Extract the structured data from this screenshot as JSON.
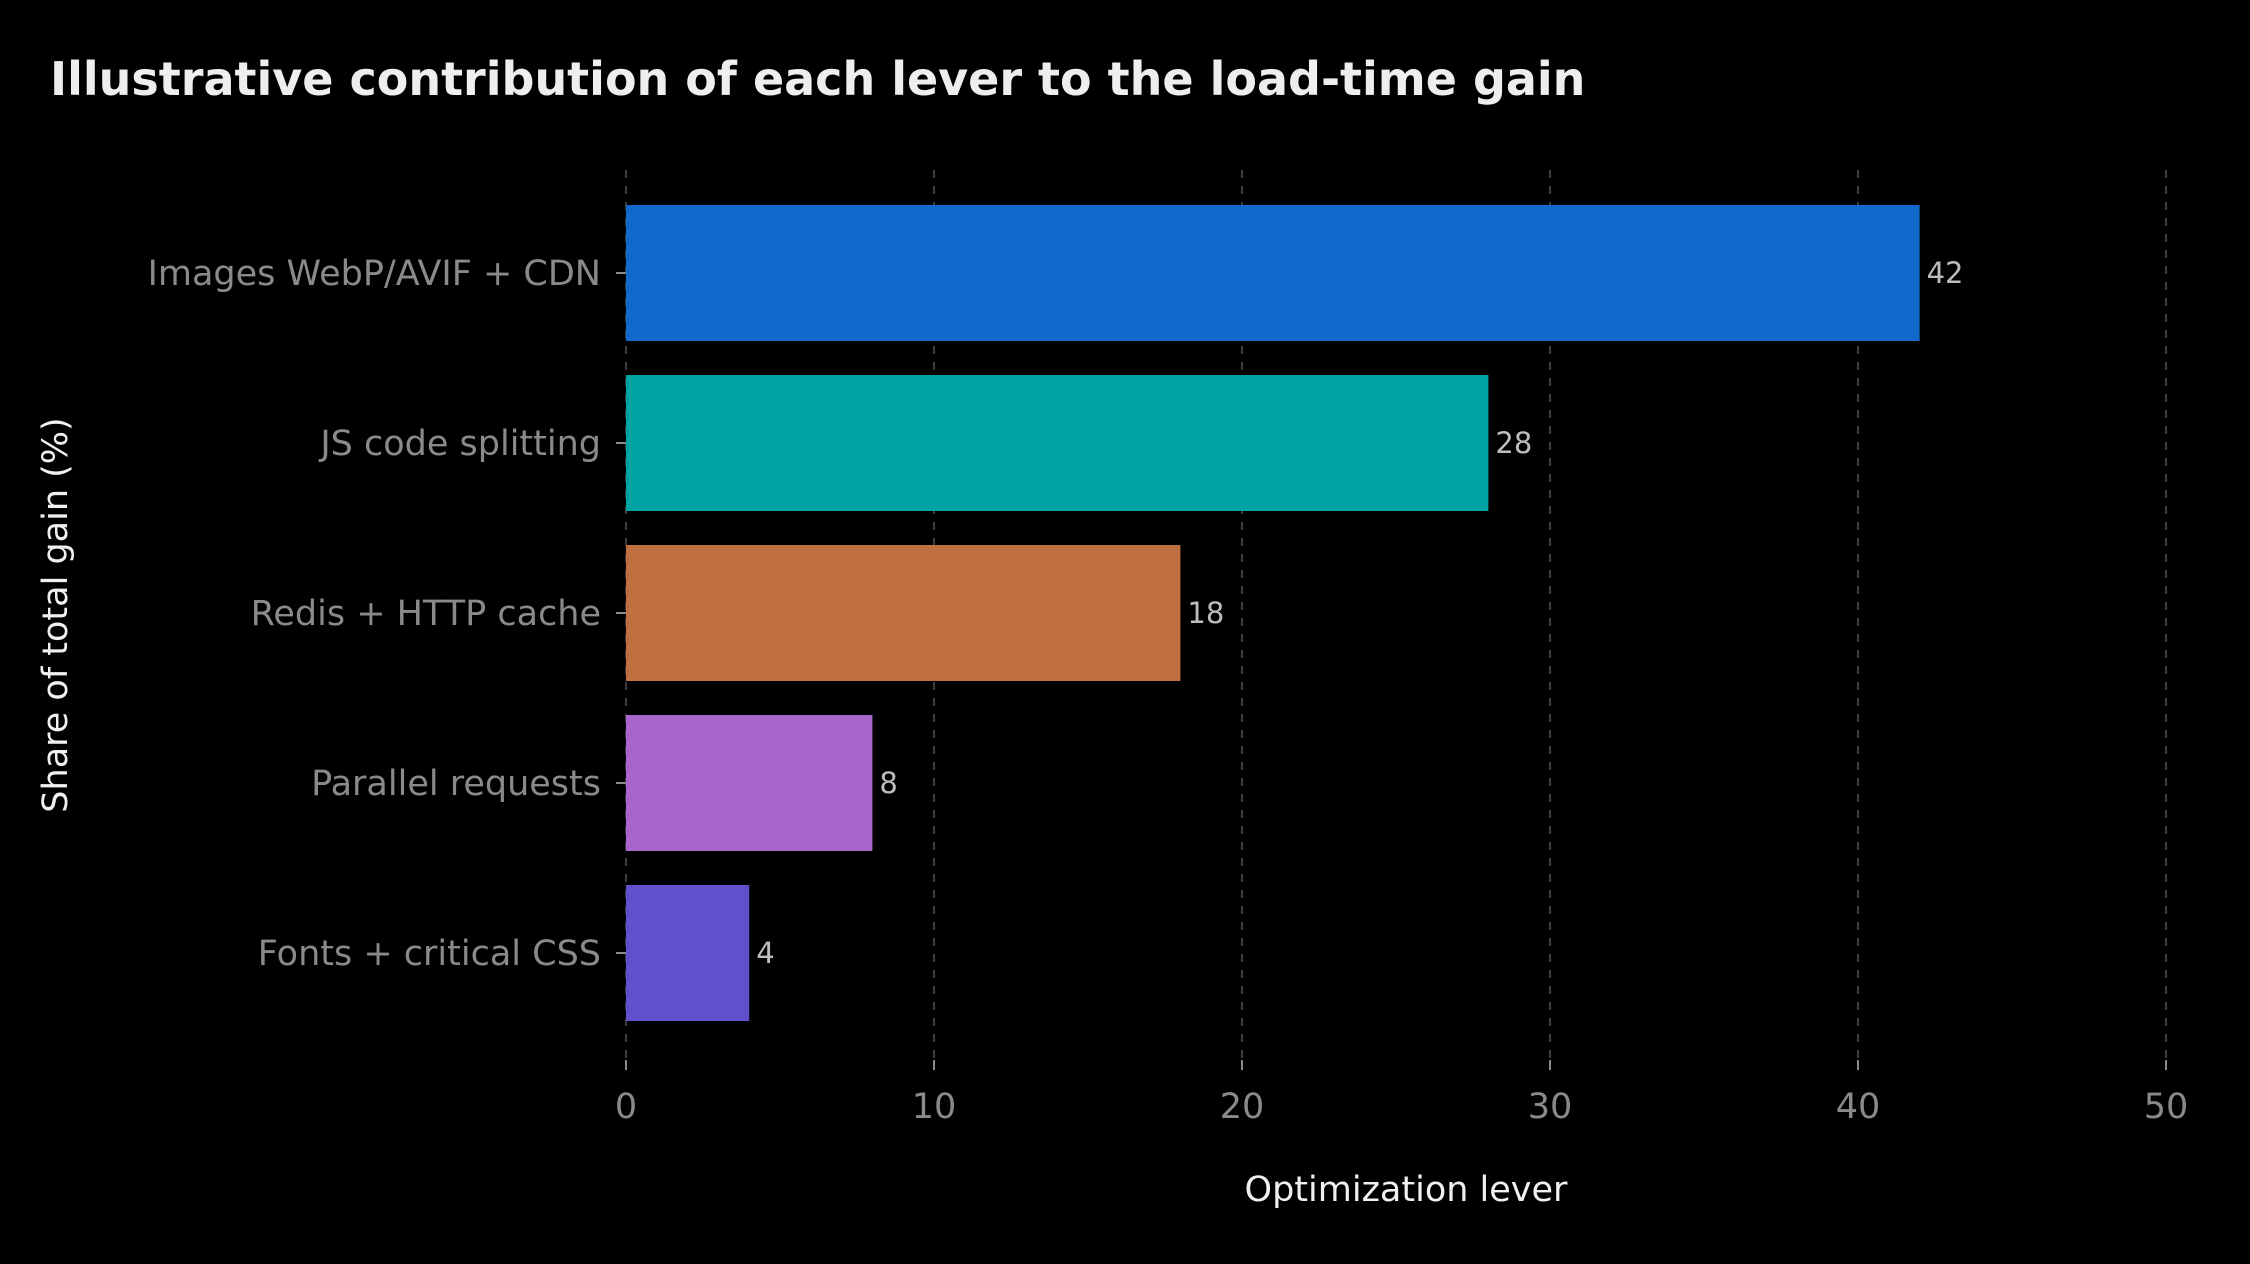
{
  "chart_data": {
    "type": "bar",
    "orientation": "horizontal",
    "title": "Illustrative contribution of each lever to the load-time gain",
    "xlabel": "Optimization lever",
    "ylabel": "Share of total gain (%)",
    "categories": [
      "Images WebP/AVIF + CDN",
      "JS code splitting",
      "Redis + HTTP cache",
      "Parallel requests",
      "Fonts + critical CSS"
    ],
    "values": [
      42,
      28,
      18,
      8,
      4
    ],
    "colors": [
      "#1169cc",
      "#00a3a3",
      "#c06f40",
      "#a866cc",
      "#6150cc"
    ],
    "xlim": [
      0,
      50
    ],
    "xticks": [
      0,
      10,
      20,
      30,
      40,
      50
    ],
    "grid": "vertical dashed",
    "legend": "none"
  }
}
